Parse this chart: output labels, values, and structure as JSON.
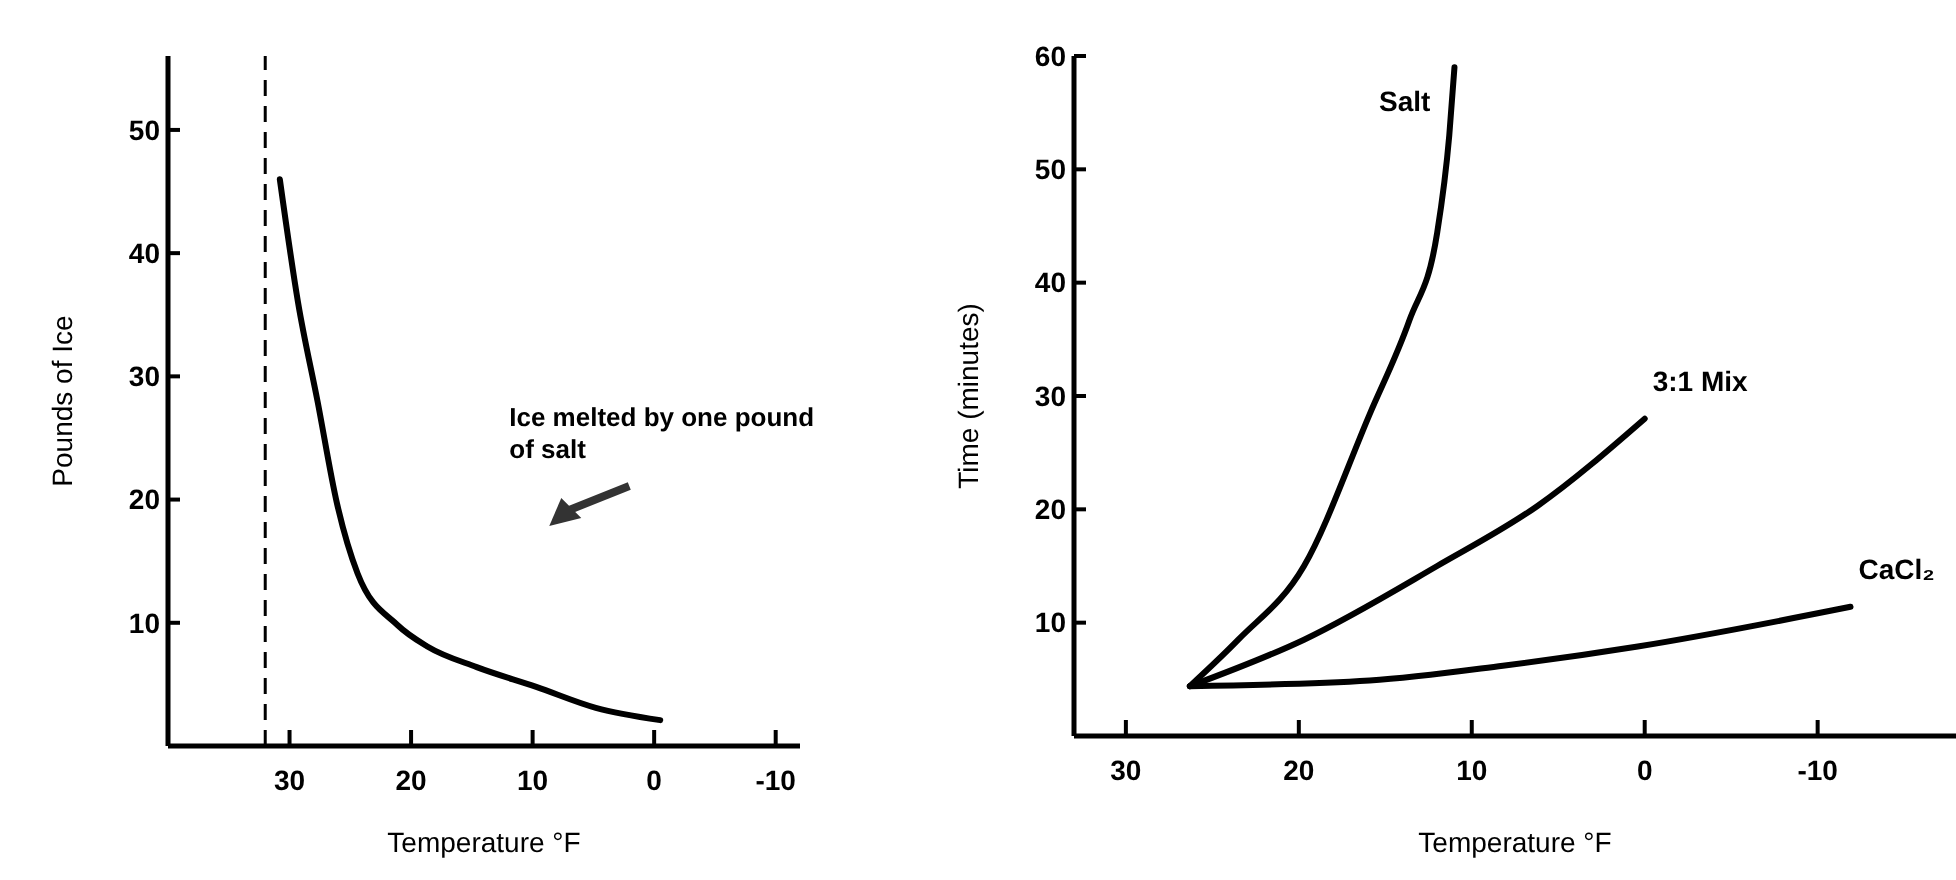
{
  "chart_data": [
    {
      "type": "line",
      "xlabel": "Temperature °F",
      "ylabel": "Pounds of Ice",
      "xlim": [
        40,
        -12
      ],
      "ylim": [
        0,
        56
      ],
      "xticks": [
        30,
        20,
        10,
        0,
        -10
      ],
      "yticks": [
        10,
        20,
        30,
        40,
        50
      ],
      "series": [
        {
          "color": "#000000",
          "x": [
            30.8,
            29.3,
            27.7,
            26.1,
            24.4,
            21.1,
            18.7,
            14.6,
            9.7,
            4.8,
            -0.5
          ],
          "values": [
            46,
            36,
            28,
            19.7,
            14,
            9.8,
            8.1,
            6.4,
            4.8,
            3.1,
            2.1
          ]
        }
      ],
      "ref_lines": [
        {
          "axis": "x",
          "value": 32,
          "line_style": "dashed"
        }
      ],
      "annotations": [
        "Ice melted by one pound of salt"
      ]
    },
    {
      "type": "line",
      "xlabel": "Temperature °F",
      "ylabel": "Time (minutes)",
      "xlim": [
        33,
        -18
      ],
      "ylim": [
        0,
        60
      ],
      "xticks": [
        30,
        20,
        10,
        0,
        -10
      ],
      "yticks": [
        10,
        20,
        30,
        40,
        50,
        60
      ],
      "series": [
        {
          "name": "Salt",
          "color": "#000000",
          "x": [
            26.3,
            23.5,
            19.7,
            15.9,
            13.6,
            12,
            11.3,
            11
          ],
          "values": [
            4.4,
            8.5,
            15,
            28.4,
            36.7,
            44.4,
            53,
            59
          ]
        },
        {
          "name": "3:1 Mix",
          "color": "#000000",
          "x": [
            26.3,
            19.7,
            12,
            6.2,
            0
          ],
          "values": [
            4.4,
            8.5,
            15,
            20.3,
            28
          ]
        },
        {
          "name": "CaCl₂",
          "color": "#000000",
          "x": [
            26.3,
            15.9,
            8.2,
            0.4,
            -11.9
          ],
          "values": [
            4.4,
            4.9,
            6.2,
            7.9,
            11.4
          ]
        }
      ]
    }
  ]
}
